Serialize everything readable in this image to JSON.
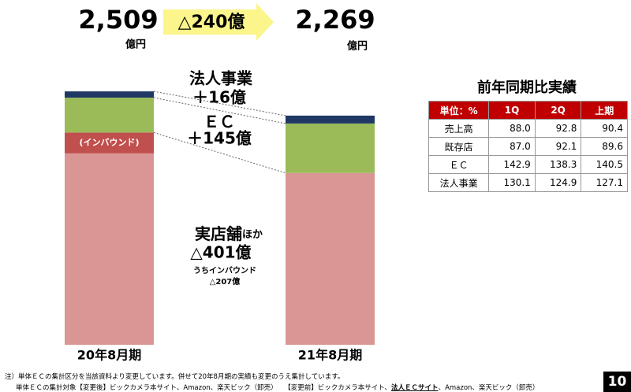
{
  "chart_data": {
    "type": "stacked-bar",
    "categories": [
      "20年8月期",
      "21年8月期"
    ],
    "series": [
      {
        "name": "実店舗ほか",
        "color": "#da9694",
        "values": [
          1895,
          1701
        ]
      },
      {
        "name": "(インバウンド)",
        "color": "#c0504d",
        "values": [
          207,
          null
        ]
      },
      {
        "name": "ＥＣ",
        "color": "#9bbb59",
        "values": [
          345,
          490
        ]
      },
      {
        "name": "法人事業",
        "color": "#1f3864",
        "values": [
          62,
          78
        ]
      }
    ],
    "totals": [
      {
        "value": 2509,
        "label": "2,509"
      },
      {
        "value": 2269,
        "label": "2,269"
      }
    ],
    "unit": "億円",
    "change": "△240億",
    "annotations": {
      "corp_change": "＋16億",
      "ec_label": "ＥＣ",
      "ec_change": "＋145億",
      "store_main": "実店舗",
      "store_suffix": "ほか",
      "store_change": "△401億",
      "inbound_label": "うちインバウンド",
      "inbound_change": "△207億"
    }
  },
  "table": {
    "title": "前年同期比実績",
    "header": [
      "単位：%",
      "1Q",
      "2Q",
      "上期"
    ],
    "rows": [
      [
        "売上高",
        "88.0",
        "92.8",
        "90.4"
      ],
      [
        "既存店",
        "87.0",
        "92.1",
        "89.6"
      ],
      [
        "ＥＣ",
        "142.9",
        "138.3",
        "140.5"
      ],
      [
        "法人事業",
        "130.1",
        "124.9",
        "127.1"
      ]
    ]
  },
  "footnote": {
    "line1": "注）単体ＥＣの集計区分を当該資料より変更しています。併せて20年8月期の実績も変更のうえ集計しています。",
    "line2": [
      "単体ＥＣの集計対象【変更後】ビックカメラ本サイト、Amazon、楽天ビック（卸売）",
      "【変更前】ビックカメラ本サイト、",
      "法人ＥＣサイト",
      "、Amazon、楽天ビック（卸売）"
    ]
  },
  "page_number": "10"
}
